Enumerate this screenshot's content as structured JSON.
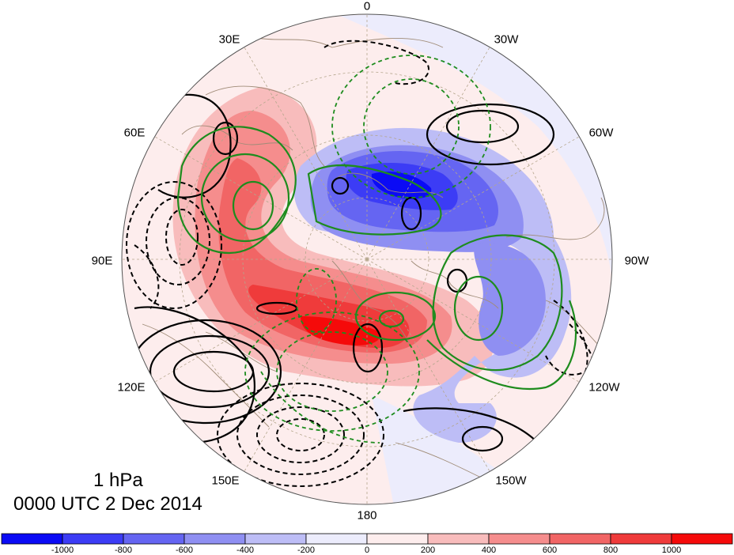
{
  "map": {
    "level_label": "1 hPa",
    "time_label": "0000 UTC 2 Dec 2014",
    "longitude_labels": {
      "lon_0": "0",
      "lon_30w": "30W",
      "lon_60w": "60W",
      "lon_90w": "90W",
      "lon_120w": "120W",
      "lon_150w": "150W",
      "lon_180": "180",
      "lon_150e": "150E",
      "lon_120e": "120E",
      "lon_90e": "90E",
      "lon_60e": "60E",
      "lon_30e": "30E"
    },
    "projection": "north polar stereographic",
    "contour_colors": {
      "black_solid": "#000000",
      "black_dashed": "#000000",
      "green_solid": "#1e8c1e",
      "green_dashed": "#1e8c1e"
    },
    "coastline_color": "#a08c78",
    "gridline_color": "#b4a68c"
  },
  "colorbar": {
    "ticks": [
      "-1000",
      "-800",
      "-600",
      "-400",
      "-200",
      "0",
      "200",
      "400",
      "600",
      "800",
      "1000"
    ],
    "colors": [
      "#0b0bf5",
      "#3c3cf5",
      "#6565f2",
      "#8f8ff2",
      "#bdbdf6",
      "#ececfc",
      "#fdeded",
      "#f8bcbc",
      "#f58d8d",
      "#f16565",
      "#ef3b3b",
      "#f50a0a"
    ]
  }
}
